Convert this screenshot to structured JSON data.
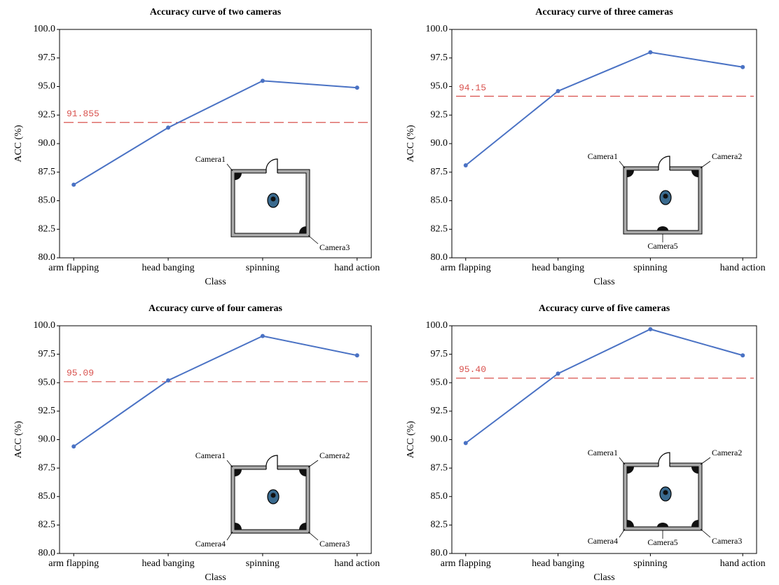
{
  "chart_data": [
    {
      "type": "line",
      "title": "Accuracy curve of two cameras",
      "xlabel": "Class",
      "ylabel": "ACC (%)",
      "categories": [
        "arm flapping",
        "head banging",
        "spinning",
        "hand action"
      ],
      "values": [
        86.4,
        91.4,
        95.5,
        94.9
      ],
      "color": "#4a72c4",
      "ylim": [
        80,
        100
      ],
      "yticks": [
        {
          "value": 80,
          "label": "80.0"
        },
        {
          "value": 82.5,
          "label": "82.5"
        },
        {
          "value": 85,
          "label": "85.0"
        },
        {
          "value": 87.5,
          "label": "87.5"
        },
        {
          "value": 90,
          "label": "90.0"
        },
        {
          "value": 92.5,
          "label": "92.5"
        },
        {
          "value": 95,
          "label": "95.0"
        },
        {
          "value": 97.5,
          "label": "97.5"
        },
        {
          "value": 100,
          "label": "100.0"
        }
      ],
      "reference_line": 91.855,
      "reference_color": "#d9534f",
      "cameras": [
        "Camera1",
        "Camera3"
      ]
    },
    {
      "type": "line",
      "title": "Accuracy curve of three cameras",
      "xlabel": "Class",
      "ylabel": "ACC (%)",
      "categories": [
        "arm flapping",
        "head banging",
        "spinning",
        "hand action"
      ],
      "values": [
        88.1,
        94.6,
        98.0,
        96.7
      ],
      "color": "#4a72c4",
      "ylim": [
        80,
        100
      ],
      "yticks": [
        {
          "value": 80,
          "label": "80.0"
        },
        {
          "value": 82.5,
          "label": "82.5"
        },
        {
          "value": 85,
          "label": "85.0"
        },
        {
          "value": 87.5,
          "label": "87.5"
        },
        {
          "value": 90,
          "label": "90.0"
        },
        {
          "value": 92.5,
          "label": "92.5"
        },
        {
          "value": 95,
          "label": "95.0"
        },
        {
          "value": 97.5,
          "label": "97.5"
        },
        {
          "value": 100,
          "label": "100.0"
        }
      ],
      "reference_line": 94.15,
      "reference_color": "#d9534f",
      "cameras": [
        "Camera1",
        "Camera2",
        "Camera5"
      ]
    },
    {
      "type": "line",
      "title": "Accuracy curve of four cameras",
      "xlabel": "Class",
      "ylabel": "ACC (%)",
      "categories": [
        "arm flapping",
        "head banging",
        "spinning",
        "hand action"
      ],
      "values": [
        89.4,
        95.2,
        99.1,
        97.4
      ],
      "color": "#4a72c4",
      "ylim": [
        80,
        100
      ],
      "yticks": [
        {
          "value": 80,
          "label": "80.0"
        },
        {
          "value": 82.5,
          "label": "82.5"
        },
        {
          "value": 85,
          "label": "85.0"
        },
        {
          "value": 87.5,
          "label": "87.5"
        },
        {
          "value": 90,
          "label": "90.0"
        },
        {
          "value": 92.5,
          "label": "92.5"
        },
        {
          "value": 95,
          "label": "95.0"
        },
        {
          "value": 97.5,
          "label": "97.5"
        },
        {
          "value": 100,
          "label": "100.0"
        }
      ],
      "reference_line": 95.09,
      "reference_color": "#d9534f",
      "cameras": [
        "Camera1",
        "Camera2",
        "Camera3",
        "Camera4"
      ]
    },
    {
      "type": "line",
      "title": "Accuracy curve of five cameras",
      "xlabel": "Class",
      "ylabel": "ACC (%)",
      "categories": [
        "arm flapping",
        "head banging",
        "spinning",
        "hand action"
      ],
      "values": [
        89.7,
        95.8,
        99.7,
        97.4
      ],
      "color": "#4a72c4",
      "ylim": [
        80,
        100
      ],
      "yticks": [
        {
          "value": 80,
          "label": "80.0"
        },
        {
          "value": 82.5,
          "label": "82.5"
        },
        {
          "value": 85,
          "label": "85.0"
        },
        {
          "value": 87.5,
          "label": "87.5"
        },
        {
          "value": 90,
          "label": "90.0"
        },
        {
          "value": 92.5,
          "label": "92.5"
        },
        {
          "value": 95,
          "label": "95.0"
        },
        {
          "value": 97.5,
          "label": "97.5"
        },
        {
          "value": 100,
          "label": "100.0"
        }
      ],
      "reference_line": {
        "value": 95.4,
        "label": "95.40"
      },
      "reference_color": "#d9534f",
      "cameras": [
        "Camera1",
        "Camera2",
        "Camera3",
        "Camera4",
        "Camera5"
      ]
    }
  ]
}
